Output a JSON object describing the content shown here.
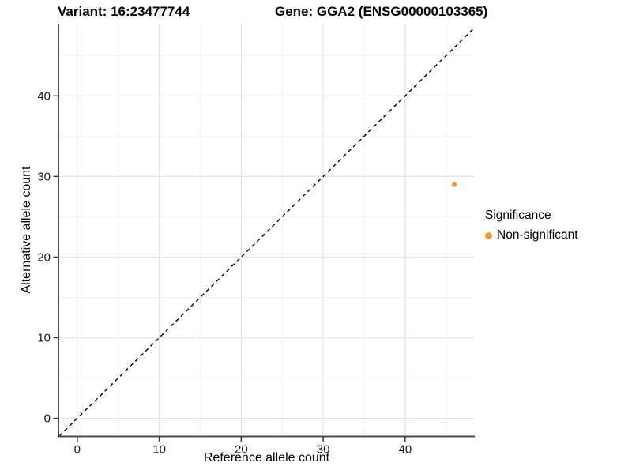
{
  "chart_data": {
    "type": "scatter",
    "title_variant": "Variant: 16:23477744",
    "title_gene": "Gene: GGA2 (ENSG00000103365)",
    "xlabel": "Reference allele count",
    "ylabel": "Alternative allele count",
    "xlim": [
      -2.2,
      48.4
    ],
    "ylim": [
      -2.25,
      48.95
    ],
    "x_major_ticks": [
      0,
      10,
      20,
      30,
      40
    ],
    "y_major_ticks": [
      0,
      10,
      20,
      30,
      40
    ],
    "x_minor_ticks": [
      5,
      15,
      25,
      35,
      45
    ],
    "y_minor_ticks": [
      5,
      15,
      25,
      35,
      45
    ],
    "grid": "major and minor gridlines on white background",
    "legend_position": "right",
    "series": [
      {
        "name": "Non-significant",
        "color": "#F89B30",
        "points": [
          {
            "x": 46,
            "y": 29
          }
        ]
      }
    ],
    "reference_line": {
      "kind": "identity y=x diagonal",
      "style": "dashed",
      "color": "#000000"
    },
    "legend": {
      "title": "Significance",
      "entries": [
        {
          "label": "Non-significant",
          "color": "#F89B30",
          "marker": "circle"
        }
      ]
    },
    "colors": {
      "background": "#FFFFFF",
      "axis_line": "#4A4A4A",
      "tick_mark": "#333333",
      "tick_label": "#1A1A1A",
      "grid_major": "#E4E4E4",
      "grid_minor": "#F0F0F0",
      "point": "#F89B30"
    }
  }
}
